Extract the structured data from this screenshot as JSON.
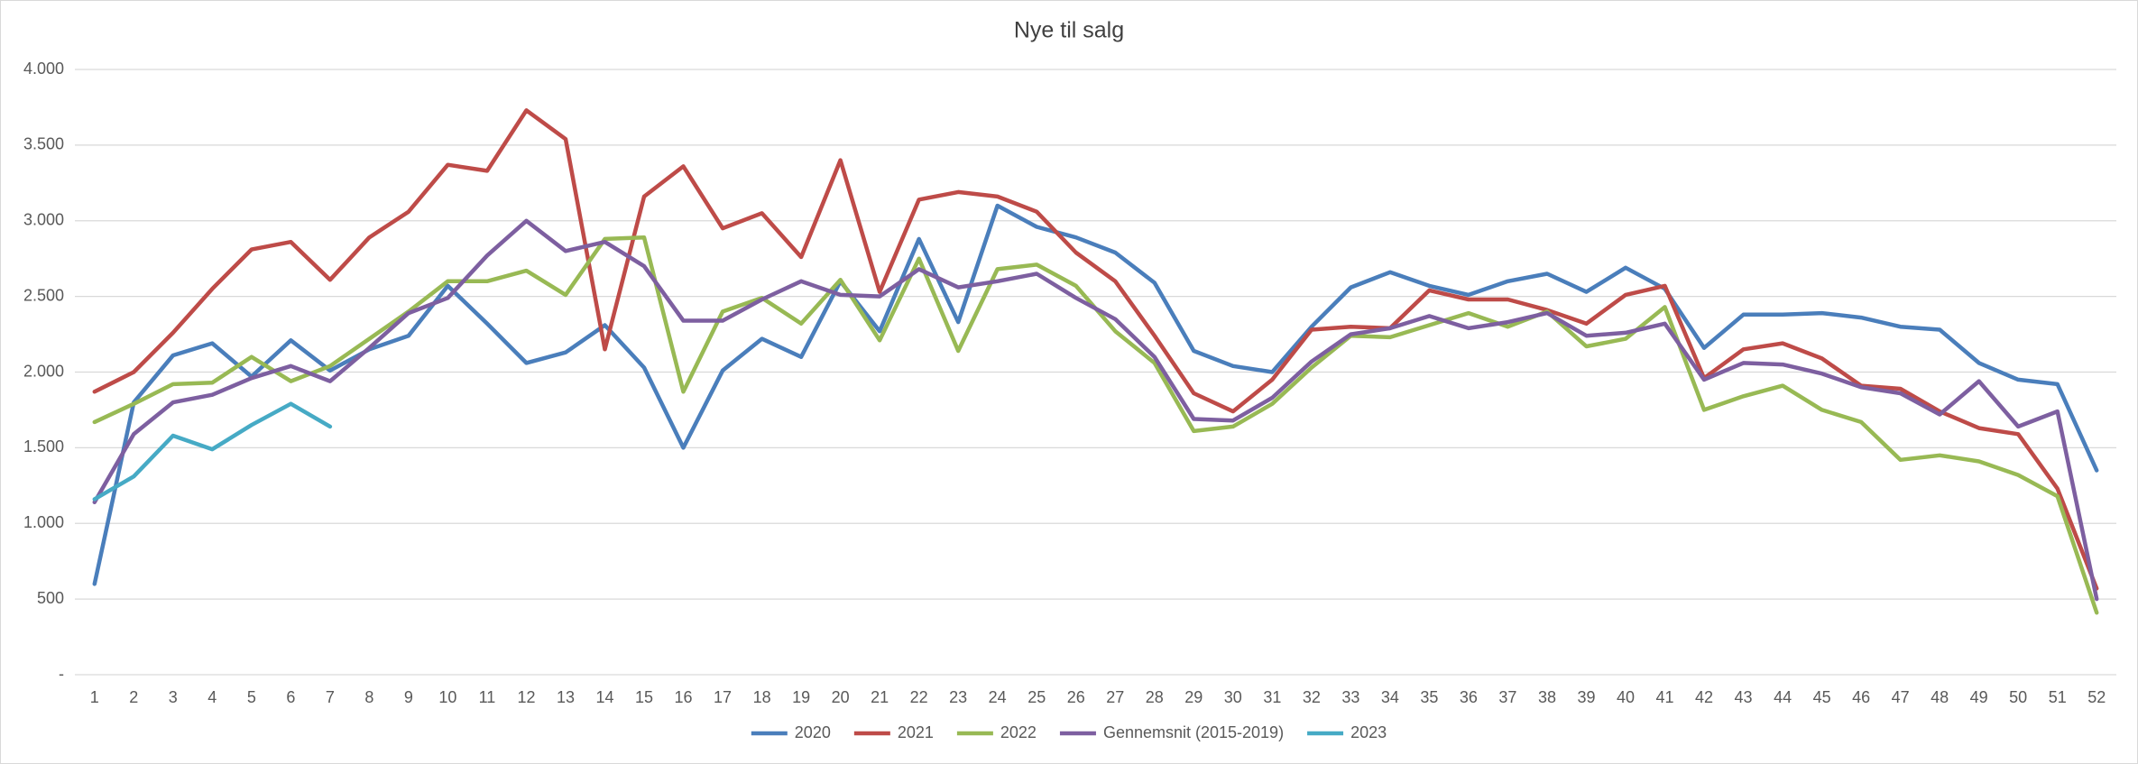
{
  "chart_data": {
    "type": "line",
    "title": "Nye til salg",
    "categories": [
      "1",
      "2",
      "3",
      "4",
      "5",
      "6",
      "7",
      "8",
      "9",
      "10",
      "11",
      "12",
      "13",
      "14",
      "15",
      "16",
      "17",
      "18",
      "19",
      "20",
      "21",
      "22",
      "23",
      "24",
      "25",
      "26",
      "27",
      "28",
      "29",
      "30",
      "31",
      "32",
      "33",
      "34",
      "35",
      "36",
      "37",
      "38",
      "39",
      "40",
      "41",
      "42",
      "43",
      "44",
      "45",
      "46",
      "47",
      "48",
      "49",
      "50",
      "51",
      "52"
    ],
    "series": [
      {
        "name": "2020",
        "color": "#4a7ebb",
        "values": [
          600,
          1800,
          2110,
          2190,
          1970,
          2210,
          2010,
          2150,
          2240,
          2570,
          2320,
          2060,
          2130,
          2310,
          2030,
          1500,
          2010,
          2220,
          2100,
          2600,
          2270,
          2880,
          2330,
          3100,
          2960,
          2890,
          2790,
          2590,
          2140,
          2040,
          2000,
          2300,
          2560,
          2660,
          2570,
          2510,
          2600,
          2650,
          2530,
          2690,
          2550,
          2160,
          2380,
          2380,
          2390,
          2360,
          2300,
          2280,
          2060,
          1950,
          1920,
          1350
        ]
      },
      {
        "name": "2021",
        "color": "#be4b48",
        "values": [
          1870,
          2000,
          2260,
          2550,
          2810,
          2860,
          2610,
          2890,
          3060,
          3370,
          3330,
          3730,
          3540,
          2150,
          3160,
          3360,
          2950,
          3050,
          2760,
          3400,
          2530,
          3140,
          3190,
          3160,
          3060,
          2790,
          2600,
          2240,
          1860,
          1740,
          1950,
          2280,
          2300,
          2290,
          2540,
          2480,
          2480,
          2410,
          2320,
          2510,
          2570,
          1960,
          2150,
          2190,
          2090,
          1910,
          1890,
          1740,
          1630,
          1590,
          1230,
          570
        ]
      },
      {
        "name": "2022",
        "color": "#98b954",
        "values": [
          1670,
          1790,
          1920,
          1930,
          2100,
          1940,
          2040,
          2220,
          2400,
          2600,
          2600,
          2670,
          2510,
          2880,
          2890,
          1870,
          2400,
          2490,
          2320,
          2610,
          2210,
          2750,
          2140,
          2680,
          2710,
          2570,
          2270,
          2060,
          1610,
          1640,
          1790,
          2030,
          2240,
          2230,
          2310,
          2390,
          2300,
          2400,
          2170,
          2220,
          2430,
          1750,
          1840,
          1910,
          1750,
          1670,
          1420,
          1450,
          1410,
          1320,
          1180,
          410
        ]
      },
      {
        "name": "Gennemsnit (2015-2019)",
        "color": "#7d5fa0",
        "values": [
          1140,
          1590,
          1800,
          1850,
          1960,
          2040,
          1940,
          2160,
          2390,
          2490,
          2770,
          3000,
          2800,
          2860,
          2700,
          2340,
          2340,
          2480,
          2600,
          2510,
          2500,
          2680,
          2560,
          2600,
          2650,
          2490,
          2350,
          2100,
          1690,
          1680,
          1830,
          2070,
          2250,
          2290,
          2370,
          2290,
          2330,
          2390,
          2240,
          2260,
          2320,
          1950,
          2060,
          2050,
          1990,
          1900,
          1860,
          1720,
          1940,
          1640,
          1740,
          500
        ]
      },
      {
        "name": "2023",
        "color": "#46aac5",
        "values": [
          1160,
          1310,
          1580,
          1490,
          1650,
          1790,
          1640,
          null,
          null,
          null,
          null,
          null,
          null,
          null,
          null,
          null,
          null,
          null,
          null,
          null,
          null,
          null,
          null,
          null,
          null,
          null,
          null,
          null,
          null,
          null,
          null,
          null,
          null,
          null,
          null,
          null,
          null,
          null,
          null,
          null,
          null,
          null,
          null,
          null,
          null,
          null,
          null,
          null,
          null,
          null,
          null,
          null
        ]
      }
    ],
    "ylim": [
      0,
      4000
    ],
    "yticks": [
      {
        "value": 0,
        "label": "-"
      },
      {
        "value": 500,
        "label": "500"
      },
      {
        "value": 1000,
        "label": "1.000"
      },
      {
        "value": 1500,
        "label": "1.500"
      },
      {
        "value": 2000,
        "label": "2.000"
      },
      {
        "value": 2500,
        "label": "2.500"
      },
      {
        "value": 3000,
        "label": "3.000"
      },
      {
        "value": 3500,
        "label": "3.500"
      },
      {
        "value": 4000,
        "label": "4.000"
      }
    ],
    "grid": true,
    "legend": "bottom"
  }
}
